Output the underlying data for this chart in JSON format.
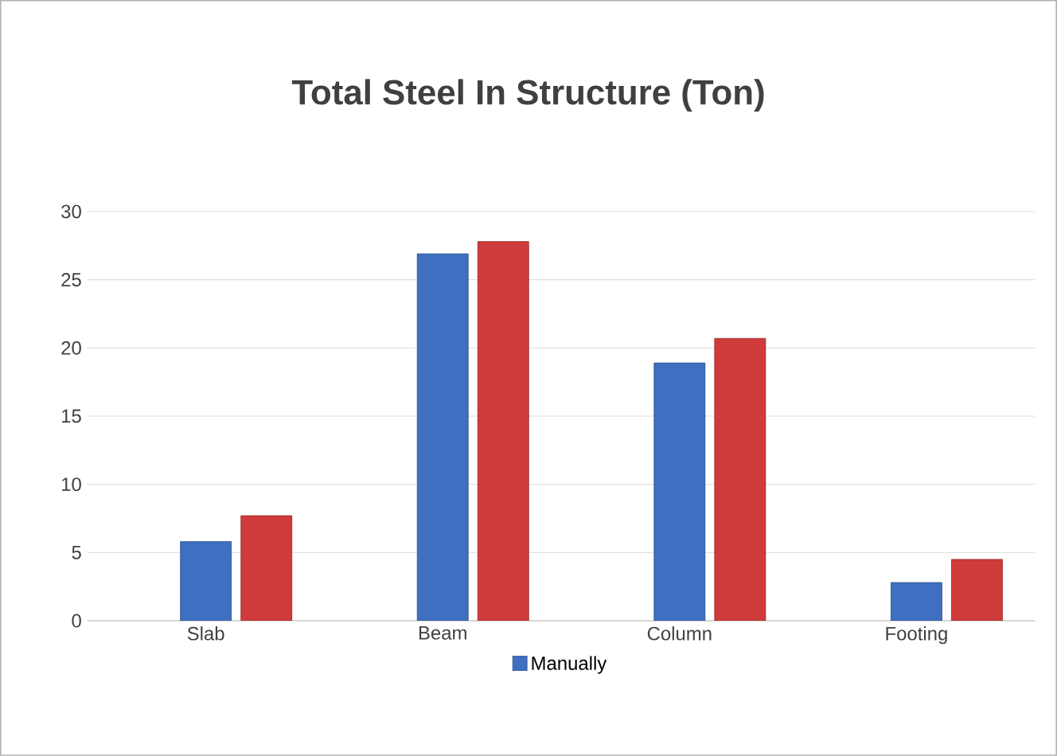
{
  "chart_data": {
    "type": "bar",
    "title": "Total Steel In Structure (Ton)",
    "categories": [
      "Slab",
      "Beam",
      "Column",
      "Footing"
    ],
    "series": [
      {
        "name": "Manually",
        "color": "#3e6fc1",
        "values": [
          5.8,
          26.9,
          18.9,
          2.8
        ]
      },
      {
        "color": "#cf3a3a",
        "values": [
          7.7,
          27.8,
          20.7,
          4.5
        ]
      }
    ],
    "ylim": [
      0,
      30
    ],
    "yticks": [
      0,
      5,
      10,
      15,
      20,
      25,
      30
    ],
    "grid": "y",
    "legend": "bottom"
  }
}
